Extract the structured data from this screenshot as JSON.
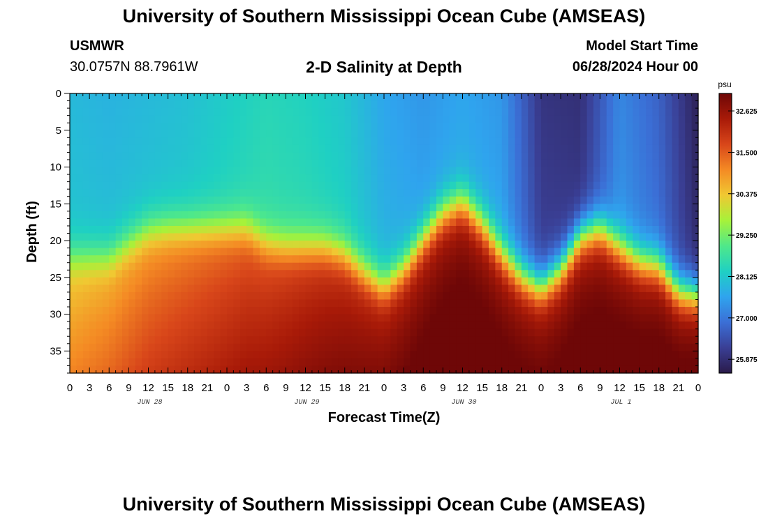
{
  "header": {
    "title": "University of Southern Mississippi Ocean Cube (AMSEAS)",
    "station_id": "USMWR",
    "coordinates": "30.0757N  88.7961W",
    "subtitle": "2-D Salinity at Depth",
    "model_start_label": "Model Start Time",
    "model_start_value": "06/28/2024 Hour 00"
  },
  "footer": {
    "title": "University of Southern Mississippi Ocean Cube (AMSEAS)"
  },
  "chart_data": {
    "type": "heatmap",
    "title": "2-D Salinity at Depth",
    "xlabel": "Forecast Time(Z)",
    "ylabel": "Depth (ft)",
    "xlim": [
      0,
      96
    ],
    "ylim": [
      0,
      38
    ],
    "x_tick_values": [
      0,
      3,
      6,
      9,
      12,
      15,
      18,
      21,
      24,
      27,
      30,
      33,
      36,
      39,
      42,
      45,
      48,
      51,
      54,
      57,
      60,
      63,
      66,
      69,
      72,
      75,
      78,
      81,
      84,
      87,
      90,
      93,
      96
    ],
    "x_tick_labels": [
      "0",
      "3",
      "6",
      "9",
      "12",
      "15",
      "18",
      "21",
      "0",
      "3",
      "6",
      "9",
      "12",
      "15",
      "18",
      "21",
      "0",
      "3",
      "6",
      "9",
      "12",
      "15",
      "18",
      "21",
      "0",
      "3",
      "6",
      "9",
      "12",
      "15",
      "18",
      "21",
      "0"
    ],
    "day_labels": [
      {
        "hour": 12,
        "label": "JUN 28"
      },
      {
        "hour": 36,
        "label": "JUN 29"
      },
      {
        "hour": 60,
        "label": "JUN 30"
      },
      {
        "hour": 84,
        "label": "JUL 1"
      }
    ],
    "y_tick_values": [
      0,
      5,
      10,
      15,
      20,
      25,
      30,
      35
    ],
    "y_tick_labels": [
      "0",
      "5",
      "10",
      "15",
      "20",
      "25",
      "30",
      "35"
    ],
    "colorbar": {
      "unit": "psu",
      "range": [
        25.5,
        33.1
      ],
      "tick_values": [
        32.625,
        31.5,
        30.375,
        29.25,
        28.125,
        27.0,
        25.875
      ],
      "tick_labels": [
        "32.625",
        "31.500",
        "30.375",
        "29.250",
        "28.125",
        "27.000",
        "25.875"
      ],
      "colors": [
        "#2a1b4a",
        "#3a3f95",
        "#3b6fd6",
        "#2fa4ee",
        "#1fd0c3",
        "#4fe88a",
        "#a6f23a",
        "#f0c832",
        "#f48a24",
        "#d8461a",
        "#a81a08",
        "#6e0707"
      ]
    },
    "surface_layer": {
      "description": "fresher upper layer salinity (psu) by forecast hour",
      "hours": [
        0,
        6,
        12,
        18,
        24,
        30,
        36,
        42,
        48,
        54,
        60,
        66,
        72,
        78,
        84,
        90,
        96
      ],
      "values": [
        27.9,
        27.8,
        27.9,
        28.0,
        28.2,
        28.4,
        28.3,
        28.1,
        27.6,
        27.4,
        27.6,
        27.4,
        26.0,
        25.9,
        27.2,
        26.7,
        25.6
      ]
    },
    "halocline_depth_ft": {
      "hours": [
        0,
        3,
        6,
        9,
        12,
        15,
        18,
        21,
        24,
        27,
        30,
        33,
        36,
        39,
        42,
        45,
        48,
        51,
        54,
        57,
        60,
        63,
        66,
        69,
        72,
        75,
        78,
        81,
        84,
        87,
        90,
        93,
        96
      ],
      "values": [
        22.5,
        22.5,
        22.5,
        20.5,
        18.8,
        18.5,
        18.5,
        18.5,
        18.5,
        18.5,
        20.5,
        21.0,
        21.0,
        21.0,
        22.0,
        24.5,
        26.5,
        24.0,
        20.0,
        16.5,
        15.0,
        18.0,
        22.0,
        25.0,
        26.5,
        24.0,
        19.5,
        18.5,
        21.0,
        23.0,
        23.5,
        27.0,
        27.5
      ]
    },
    "bottom_layer": {
      "description": "saltier lower layer salinity (psu) by forecast hour",
      "hours": [
        0,
        12,
        24,
        36,
        48,
        60,
        72,
        84,
        96
      ],
      "values": [
        30.6,
        31.2,
        31.7,
        32.2,
        32.6,
        32.9,
        32.8,
        32.9,
        33.0
      ]
    }
  }
}
